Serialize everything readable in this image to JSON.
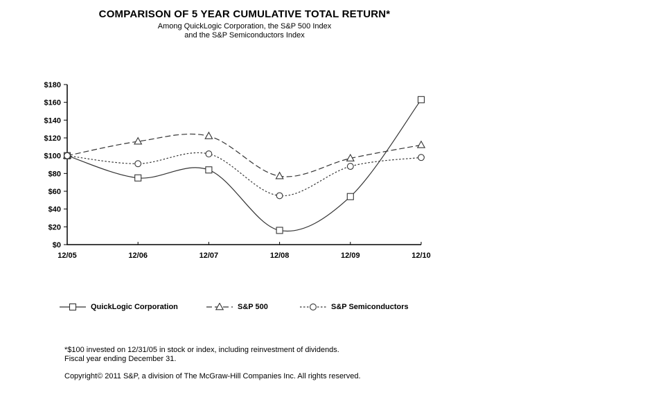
{
  "chart_data": {
    "type": "line",
    "title": "COMPARISON OF 5 YEAR CUMULATIVE TOTAL RETURN*",
    "subtitle_line1": "Among QuickLogic Corporation, the S&P 500 Index",
    "subtitle_line2": "and the S&P Semiconductors Index",
    "categories": [
      "12/05",
      "12/06",
      "12/07",
      "12/08",
      "12/09",
      "12/10"
    ],
    "series": [
      {
        "name": "QuickLogic Corporation",
        "marker": "square",
        "line_style": "solid",
        "values": [
          100,
          75,
          84,
          16,
          54,
          163
        ]
      },
      {
        "name": "S&P 500",
        "marker": "triangle",
        "line_style": "dashed",
        "values": [
          100,
          116,
          122,
          77,
          97,
          112
        ]
      },
      {
        "name": "S&P Semiconductors",
        "marker": "circle",
        "line_style": "dotted",
        "values": [
          100,
          91,
          102,
          55,
          88,
          98
        ]
      }
    ],
    "xlabel": "",
    "ylabel": "",
    "ylim": [
      0,
      180
    ],
    "y_tick_step": 20,
    "y_tick_prefix": "$",
    "grid": false,
    "smooth": true,
    "legend_position": "bottom",
    "line_color": "#333333",
    "text_color": "#000000",
    "background_color": "#ffffff"
  },
  "footnotes": {
    "line1": "*$100 invested on 12/31/05 in stock or index, including reinvestment of dividends.",
    "line2": "Fiscal year ending December 31.",
    "copyright": "Copyright© 2011 S&P, a division of The McGraw-Hill Companies Inc. All rights reserved."
  }
}
